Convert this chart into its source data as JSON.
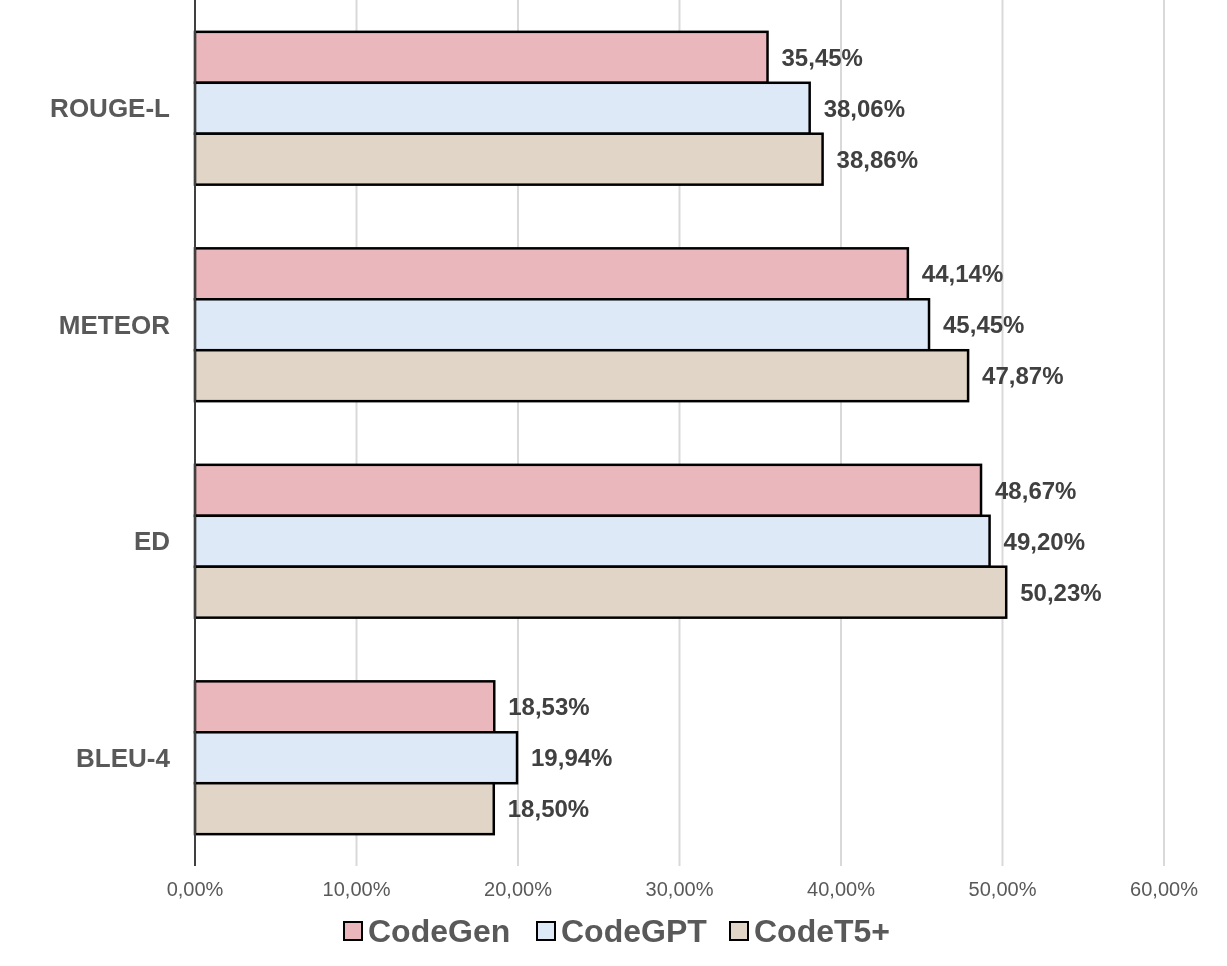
{
  "chart_data": {
    "type": "bar",
    "orientation": "horizontal",
    "categories": [
      "ROUGE-L",
      "METEOR",
      "ED",
      "BLEU-4"
    ],
    "series": [
      {
        "name": "CodeGen",
        "color": "#eab8bc",
        "values": [
          35.45,
          44.14,
          48.67,
          18.53
        ],
        "value_labels": [
          "35,45%",
          "44,14%",
          "48,67%",
          "18,53%"
        ]
      },
      {
        "name": "CodeGPT",
        "color": "#dde9f7",
        "values": [
          38.06,
          45.45,
          49.2,
          19.94
        ],
        "value_labels": [
          "38,06%",
          "45,45%",
          "49,20%",
          "19,94%"
        ]
      },
      {
        "name": "CodeT5+",
        "color": "#e0d5c6",
        "values": [
          38.86,
          47.87,
          50.23,
          18.5
        ],
        "value_labels": [
          "38,86%",
          "47,87%",
          "50,23%",
          "18,50%"
        ]
      }
    ],
    "xlim": [
      0,
      60
    ],
    "xticks": [
      {
        "value": 0,
        "label": "0,00%"
      },
      {
        "value": 10,
        "label": "10,00%"
      },
      {
        "value": 20,
        "label": "20,00%"
      },
      {
        "value": 30,
        "label": "30,00%"
      },
      {
        "value": 40,
        "label": "40,00%"
      },
      {
        "value": 50,
        "label": "50,00%"
      },
      {
        "value": 60,
        "label": "60,00%"
      }
    ],
    "grid": "x",
    "legend": "bottom"
  }
}
